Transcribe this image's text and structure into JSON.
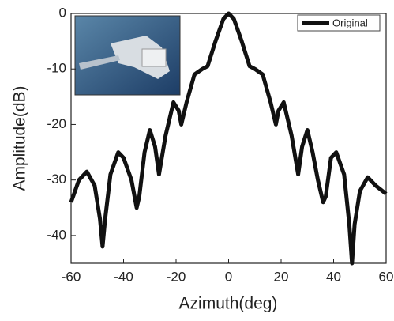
{
  "chart_data": {
    "type": "line",
    "x_label": "Azimuth(deg)",
    "y_label": "Amplitude(dB)",
    "xlim": [
      -60,
      60
    ],
    "xticks": [
      -60,
      -40,
      -20,
      0,
      20,
      40,
      60
    ],
    "ylim": [
      -45,
      0
    ],
    "yticks": [
      -40,
      -30,
      -20,
      -10,
      0
    ],
    "legend": "upper right",
    "series": [
      {
        "name": "Original",
        "color": "#111111",
        "x": [
          -60,
          -57,
          -54,
          -51,
          -49,
          -48,
          -47,
          -45,
          -42,
          -40,
          -37,
          -35,
          -34,
          -32,
          -30,
          -28,
          -26.5,
          -24,
          -21,
          -19,
          -18,
          -16,
          -13,
          -10,
          -8,
          -5,
          -2,
          0,
          2,
          5,
          8,
          10,
          13,
          16,
          18,
          19,
          21,
          24,
          26.5,
          28,
          30,
          32,
          34,
          36,
          37,
          39,
          41,
          44,
          46,
          47,
          48,
          50,
          53,
          56,
          60
        ],
        "values": [
          -34,
          -30,
          -28.5,
          -31,
          -37,
          -42,
          -37,
          -29,
          -25,
          -26,
          -30,
          -35,
          -33,
          -25,
          -21,
          -24,
          -29,
          -22,
          -16,
          -17.5,
          -20,
          -16,
          -11,
          -10,
          -9.5,
          -5,
          -1,
          0,
          -1,
          -5,
          -9.5,
          -10,
          -11,
          -16,
          -20,
          -17.5,
          -16,
          -22,
          -29,
          -24,
          -21,
          -25,
          -30,
          -34,
          -33,
          -26,
          -25,
          -29,
          -38,
          -45,
          -38,
          -32,
          -29.5,
          -31,
          -32.5
        ]
      }
    ]
  }
}
